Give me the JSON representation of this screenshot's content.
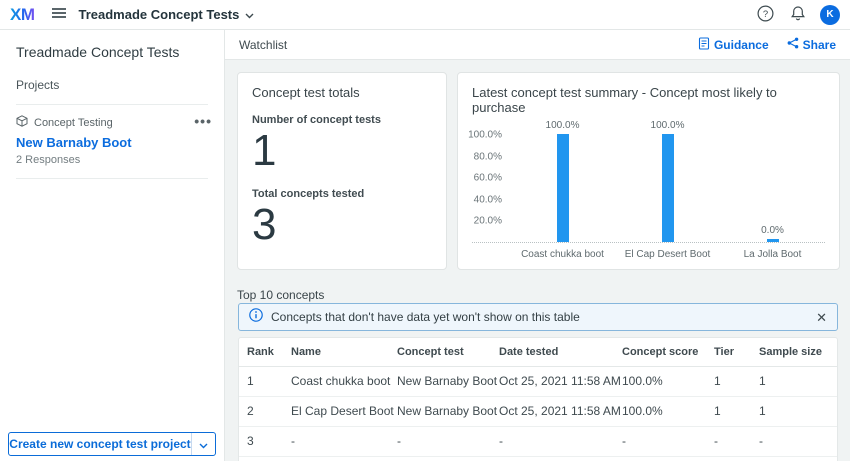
{
  "topbar": {
    "logo_text": "XM",
    "project_switcher_label": "Treadmade Concept Tests",
    "avatar_initial": "K",
    "icons": {
      "menu": "hamburger-icon",
      "help": "help-icon",
      "notifications": "bell-icon"
    }
  },
  "sidebar": {
    "title": "Treadmade Concept Tests",
    "section_label": "Projects",
    "project": {
      "type_label": "Concept Testing",
      "type_icon": "cube-icon",
      "name": "New Barnaby Boot",
      "responses": "2 Responses",
      "options_icon": "ellipsis-icon"
    },
    "create_button_label": "Create new concept test project"
  },
  "main": {
    "header": {
      "title": "Watchlist",
      "guidance_label": "Guidance",
      "share_label": "Share"
    },
    "totals_card": {
      "title": "Concept test totals",
      "metrics": [
        {
          "label": "Number of concept tests",
          "value": "1"
        },
        {
          "label": "Total concepts tested",
          "value": "3"
        }
      ]
    },
    "summary_card": {
      "title": "Latest concept test summary - Concept most likely to purchase"
    },
    "top_concepts": {
      "title": "Top 10 concepts",
      "banner_text": "Concepts that don't have data yet won't show on this table",
      "table": {
        "columns": [
          "Rank",
          "Name",
          "Concept test",
          "Date tested",
          "Concept score",
          "Tier",
          "Sample size"
        ],
        "rows": [
          [
            "1",
            "Coast chukka boot",
            "New Barnaby Boot",
            "Oct 25, 2021 11:58 AM",
            "100.0%",
            "1",
            "1"
          ],
          [
            "2",
            "El Cap Desert Boot",
            "New Barnaby Boot",
            "Oct 25, 2021 11:58 AM",
            "100.0%",
            "1",
            "1"
          ],
          [
            "3",
            "-",
            "-",
            "-",
            "-",
            "-",
            "-"
          ]
        ]
      }
    }
  },
  "chart_data": {
    "type": "bar",
    "title": "Latest concept test summary - Concept most likely to purchase",
    "categories": [
      "Coast chukka boot",
      "El Cap Desert Boot",
      "La Jolla Boot"
    ],
    "values": [
      100.0,
      100.0,
      0.0
    ],
    "value_labels": [
      "100.0%",
      "100.0%",
      "0.0%"
    ],
    "ytick_labels": [
      "100.0%",
      "80.0%",
      "60.0%",
      "40.0%",
      "20.0%"
    ],
    "ylabel": "",
    "xlabel": "",
    "ylim": [
      0,
      100
    ],
    "grid": "dotted zero baseline only",
    "legend": "none",
    "bar_color": "#2196ef"
  },
  "colors": {
    "accent_blue": "#0b6cde",
    "bar_blue": "#2196ef",
    "avatar_blue": "#0b6ce0",
    "banner_bg": "#eff6fc",
    "banner_border": "#86b6dc",
    "content_bg": "#f0f3f3"
  }
}
